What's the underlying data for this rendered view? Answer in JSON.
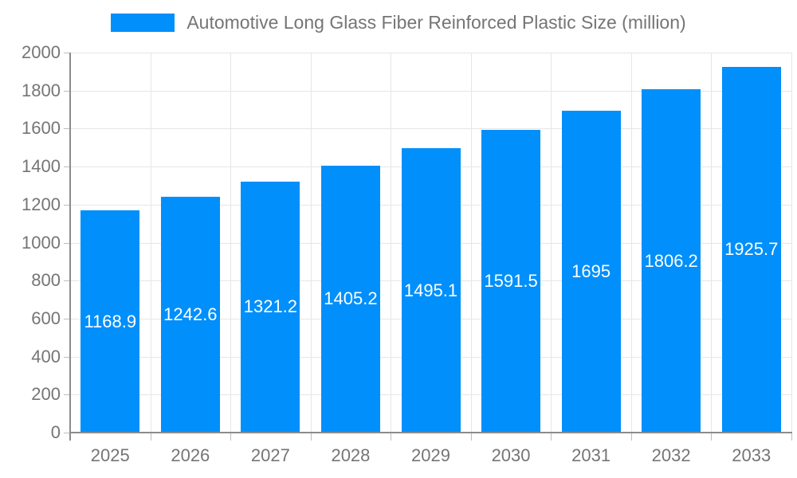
{
  "chart_data": {
    "type": "bar",
    "title": "Automotive Long Glass Fiber Reinforced Plastic Size (million)",
    "categories": [
      "2025",
      "2026",
      "2027",
      "2028",
      "2029",
      "2030",
      "2031",
      "2032",
      "2033"
    ],
    "values": [
      1168.9,
      1242.6,
      1321.2,
      1405.2,
      1495.1,
      1591.5,
      1695,
      1806.2,
      1925.7
    ],
    "value_labels": [
      "1168.9",
      "1242.6",
      "1321.2",
      "1405.2",
      "1495.1",
      "1591.5",
      "1695",
      "1806.2",
      "1925.7"
    ],
    "xlabel": "",
    "ylabel": "",
    "ylim": [
      0,
      2000
    ],
    "ytick_step": 200,
    "grid": true,
    "legend_position": "top",
    "legend_entries": [
      "Automotive Long Glass Fiber Reinforced Plastic Size (million)"
    ],
    "colors": {
      "bar": "#008FFB",
      "bar_label": "#FFFFFF",
      "axis": "#8C8C8C",
      "grid": "#E6E6E6",
      "tick": "#BDBDBD",
      "text": "#757575",
      "background": "#FFFFFF"
    }
  }
}
